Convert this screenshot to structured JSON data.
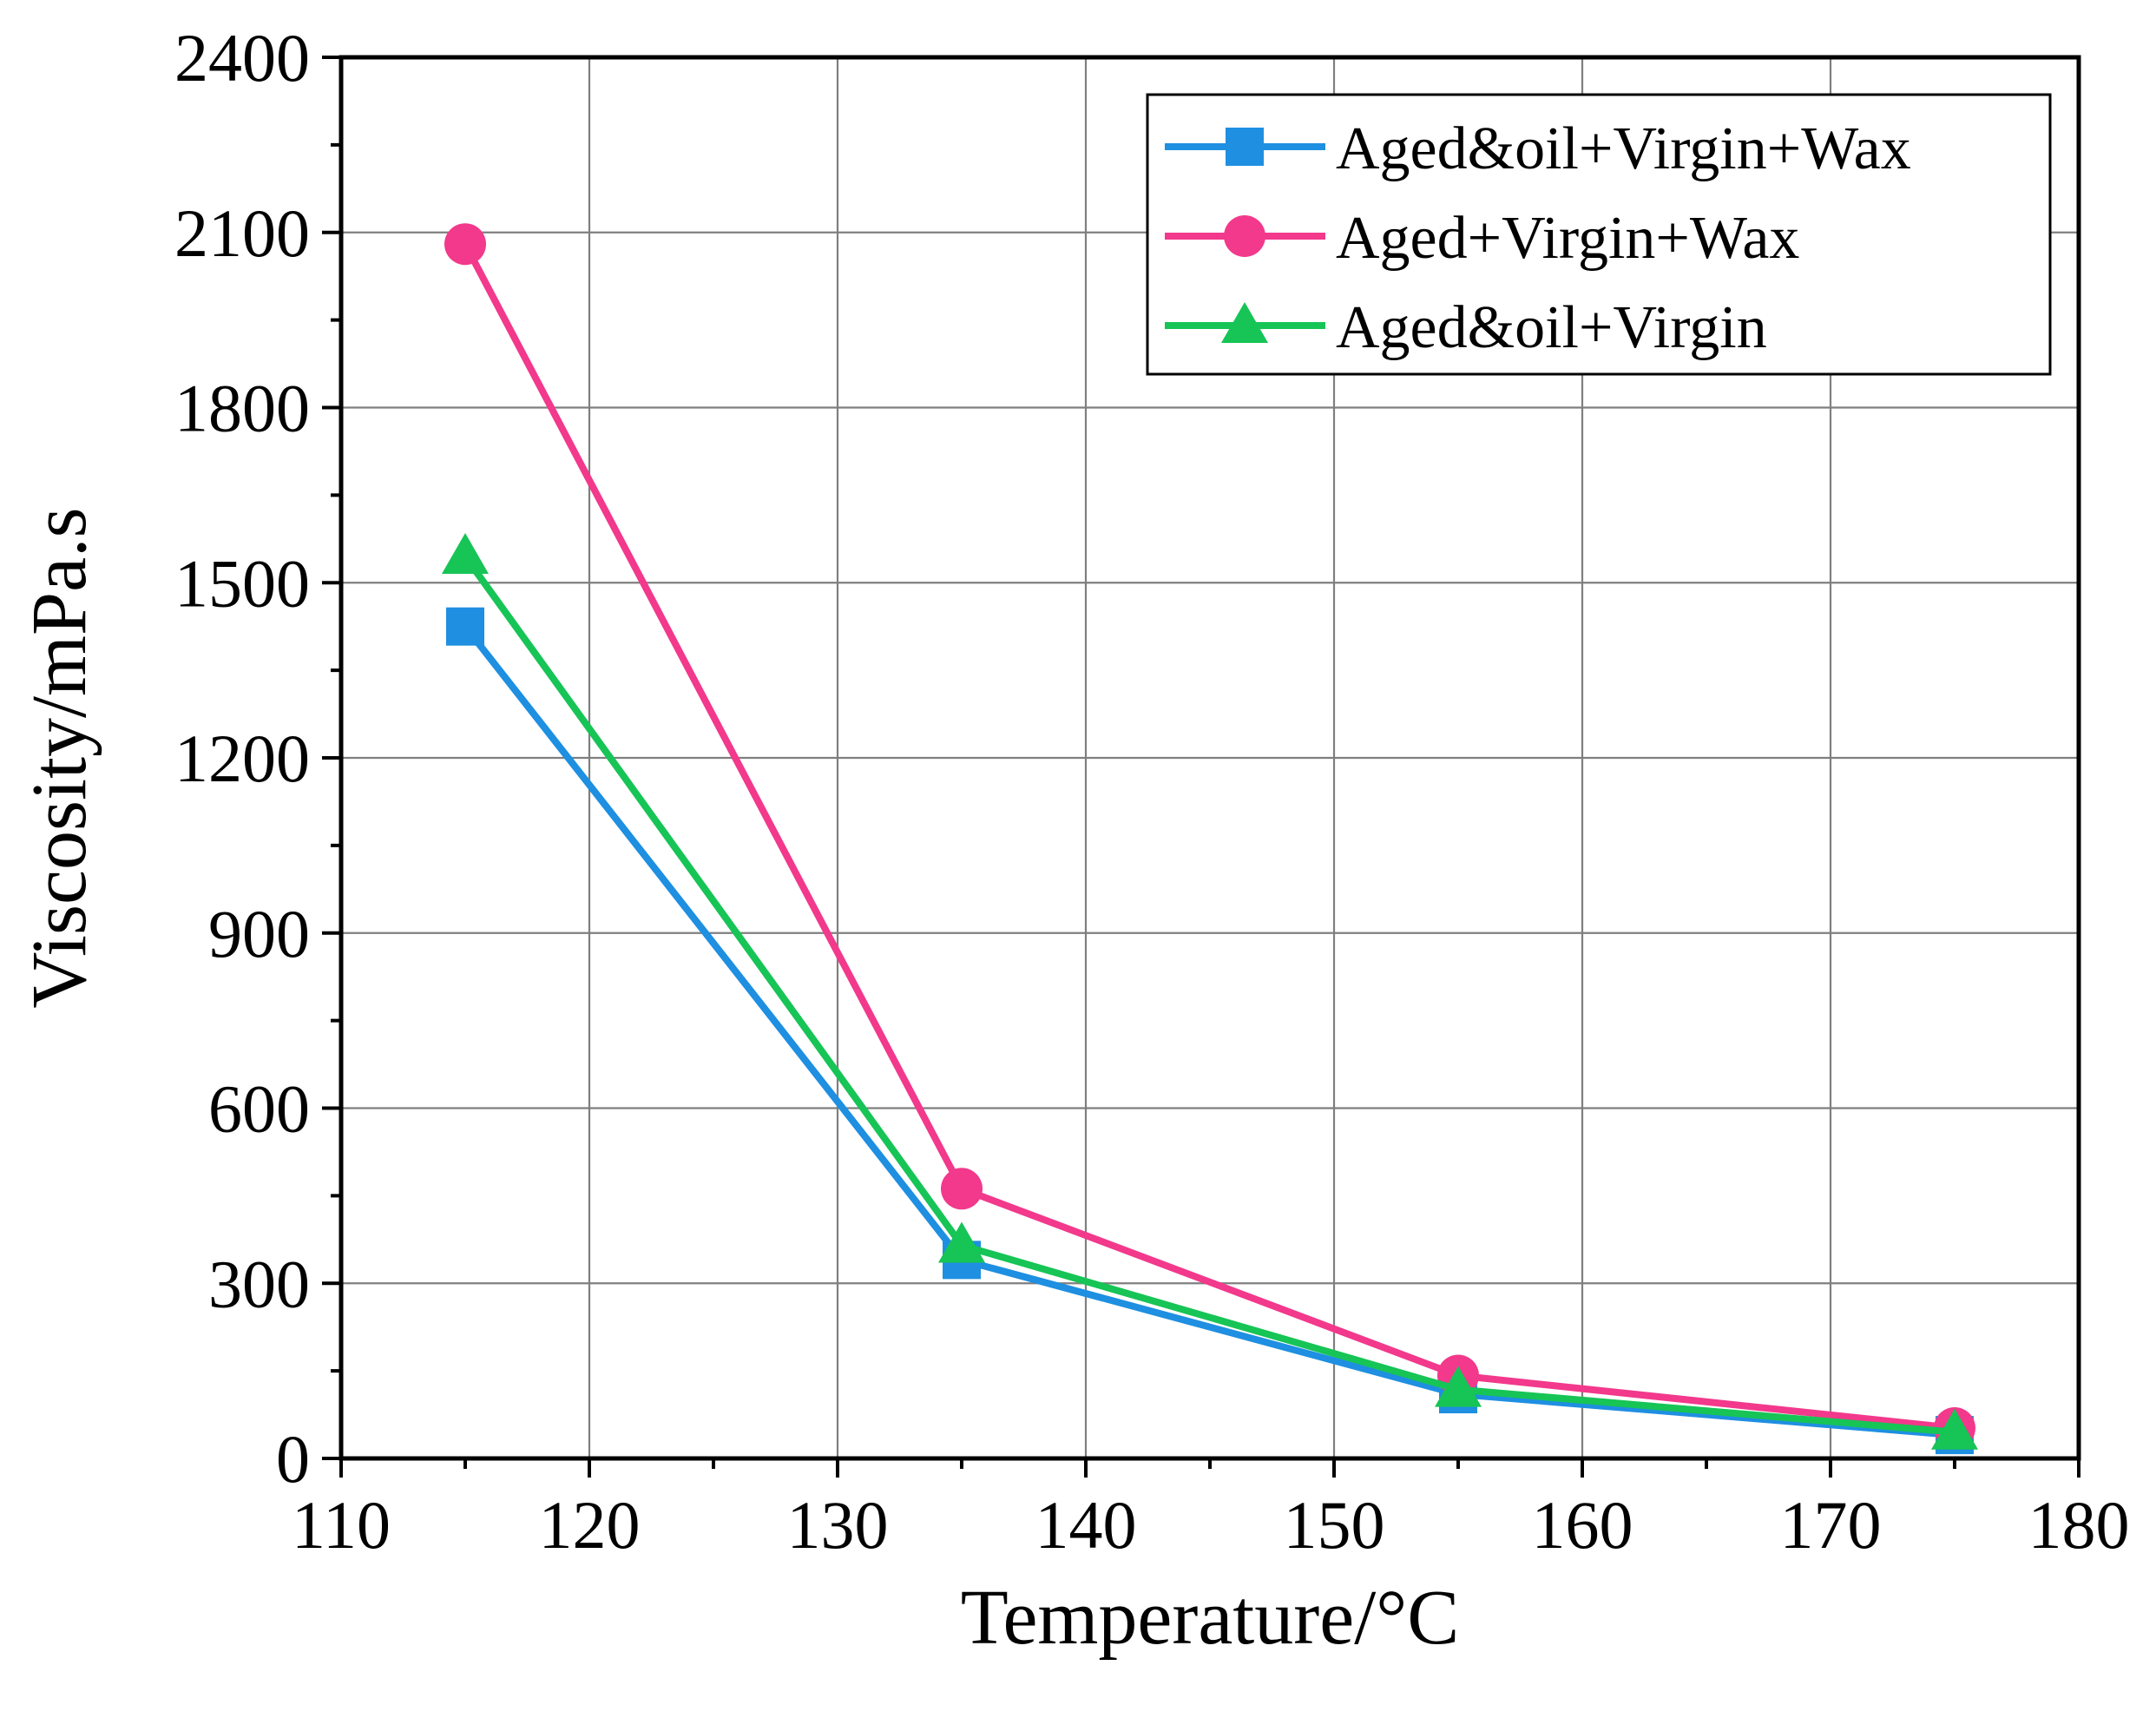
{
  "chart_data": {
    "type": "line",
    "title": "",
    "xlabel": "Temperature/°C",
    "ylabel": "Viscosity/mPa.s",
    "xlim": [
      110,
      180
    ],
    "ylim": [
      0,
      2400
    ],
    "xticks": [
      110,
      120,
      130,
      140,
      150,
      160,
      170,
      180
    ],
    "yticks": [
      0,
      300,
      600,
      900,
      1200,
      1500,
      1800,
      2100,
      2400
    ],
    "grid": true,
    "legend_position": "top-right",
    "x": [
      115,
      135,
      155,
      175
    ],
    "series": [
      {
        "name": "Aged&oil+Virgin+Wax",
        "marker": "square",
        "color": "#1e8fe1",
        "values": [
          1425,
          340,
          110,
          40
        ]
      },
      {
        "name": "Aged+Virgin+Wax",
        "marker": "circle",
        "color": "#f2398c",
        "values": [
          2080,
          462,
          142,
          52
        ]
      },
      {
        "name": "Aged&oil+Virgin",
        "marker": "triangle",
        "color": "#17c456",
        "values": [
          1545,
          365,
          118,
          45
        ]
      }
    ]
  }
}
